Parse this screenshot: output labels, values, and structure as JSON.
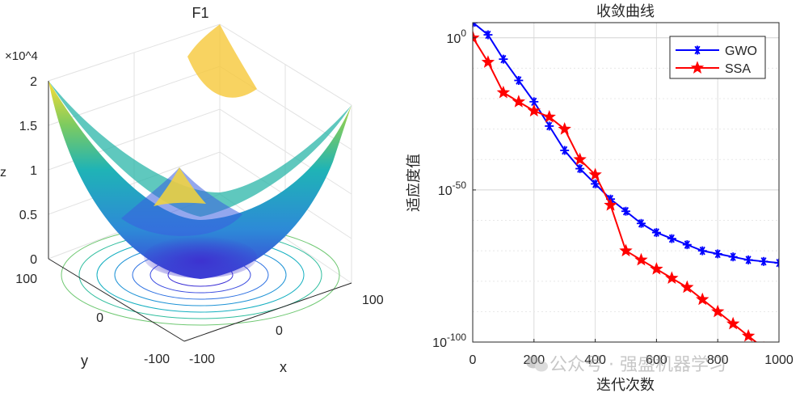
{
  "watermark": "公众号 · 强盛机器学习",
  "chart_data": [
    {
      "type": "surface3d",
      "title": "F1",
      "xlabel": "x",
      "ylabel": "y",
      "zlabel": "z",
      "z_exponent_label": "×10^4",
      "xlim": [
        -100,
        100
      ],
      "ylim": [
        -100,
        100
      ],
      "zlim": [
        0,
        20000
      ],
      "x_ticks": [
        "-100",
        "0",
        "100"
      ],
      "y_ticks": [
        "-100",
        "0",
        "100"
      ],
      "z_ticks": [
        "0",
        "0.5",
        "1",
        "1.5",
        "2"
      ],
      "function": "z = x^2 + y^2",
      "contours": "concentric circles on the z=0 plane",
      "colormap": "parula"
    },
    {
      "type": "line",
      "title": "收敛曲线",
      "xlabel": "迭代次数",
      "ylabel": "适应度值",
      "xlim": [
        0,
        1000
      ],
      "y_scale": "log",
      "ylim_exponent": [
        -100,
        5
      ],
      "x_ticks": [
        "0",
        "200",
        "400",
        "600",
        "800",
        "1000"
      ],
      "y_ticks": [
        {
          "base": "10",
          "exp": "0",
          "value": 0
        },
        {
          "base": "10",
          "exp": "-50",
          "value": -50
        },
        {
          "base": "10",
          "exp": "-100",
          "value": -100
        }
      ],
      "legend_position": "top-right",
      "grid": true,
      "x": [
        1,
        50,
        100,
        150,
        200,
        250,
        300,
        350,
        400,
        450,
        500,
        550,
        600,
        650,
        700,
        750,
        800,
        850,
        900,
        950,
        1000
      ],
      "series": [
        {
          "name": "GWO",
          "color": "#0000ff",
          "marker": "asterisk",
          "log10_values": [
            5,
            1,
            -7,
            -14,
            -21,
            -29,
            -37,
            -43,
            -48,
            -53,
            -57,
            -61,
            -64,
            -66,
            -68,
            -70,
            -71,
            -72,
            -73,
            -73.5,
            -74
          ]
        },
        {
          "name": "SSA",
          "color": "#ff0000",
          "marker": "pentagram",
          "log10_values": [
            0,
            -8,
            -18,
            -21,
            -24,
            -26,
            -30,
            -40,
            -45,
            -55,
            -70,
            -73,
            -76,
            -79,
            -82,
            -86,
            -90,
            -94,
            -98,
            -102,
            -105
          ]
        }
      ]
    }
  ]
}
